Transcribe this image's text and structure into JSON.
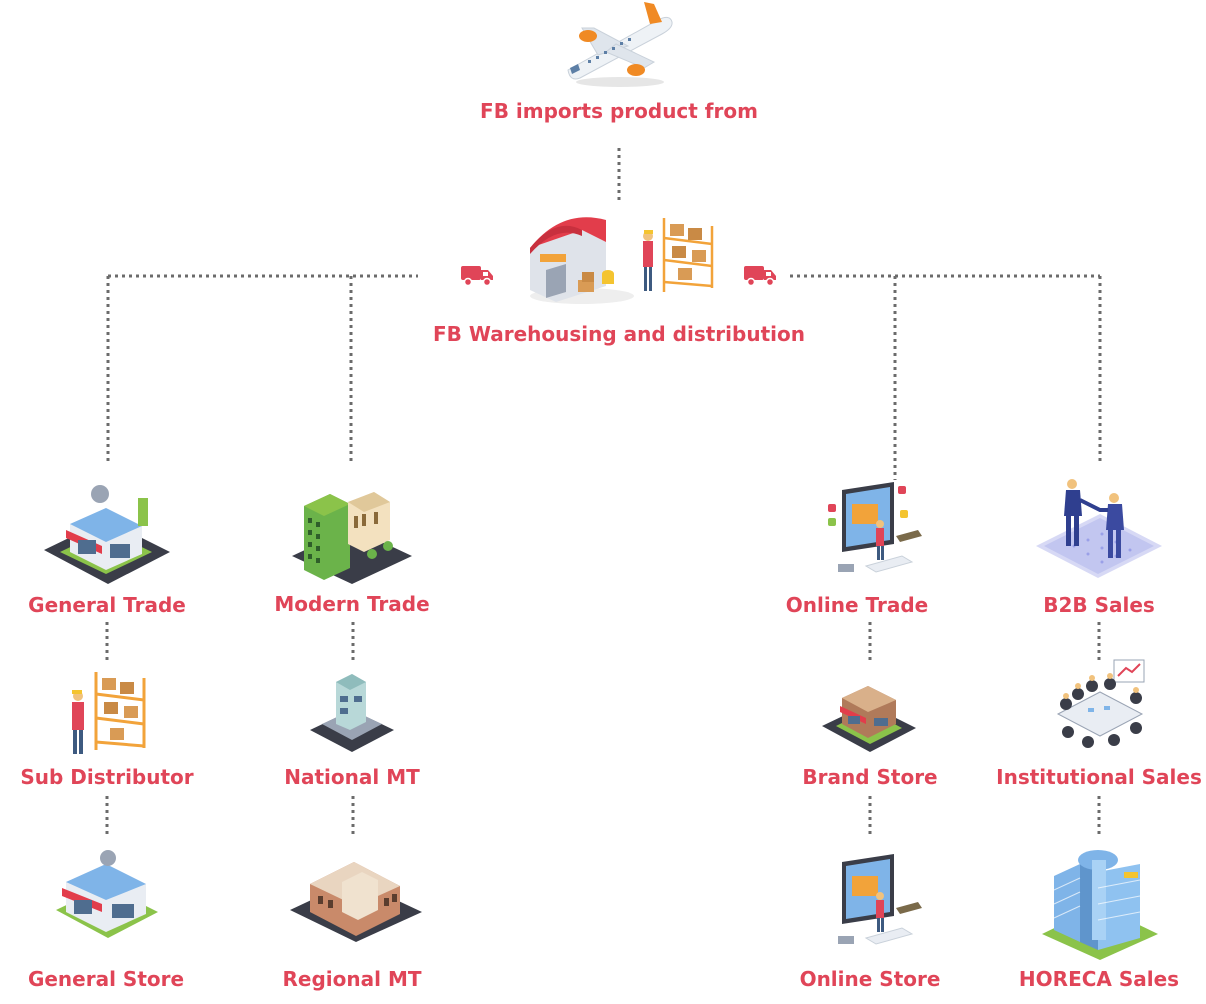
{
  "top": {
    "label": "FB imports product from",
    "icon": "airplane-icon"
  },
  "hub": {
    "label": "FB Warehousing and distribution",
    "icon": "warehouse-icon"
  },
  "columns": [
    {
      "channel": "General Trade",
      "level2": "Sub Distributor",
      "level3": "General Store"
    },
    {
      "channel": "Modern Trade",
      "level2": "National MT",
      "level3": "Regional MT"
    },
    {
      "channel": "Online Trade",
      "level2": "Brand Store",
      "level3": "Online Store"
    },
    {
      "channel": "B2B Sales",
      "level2": "Institutional Sales",
      "level3": "HORECA Sales"
    }
  ],
  "colors": {
    "accent": "#e04558",
    "connector": "#6b6b6b",
    "road": "#3a3d48",
    "grass": "#8bc34a",
    "shelf": "#f2a33a",
    "building_blue": "#7fb4e8"
  }
}
